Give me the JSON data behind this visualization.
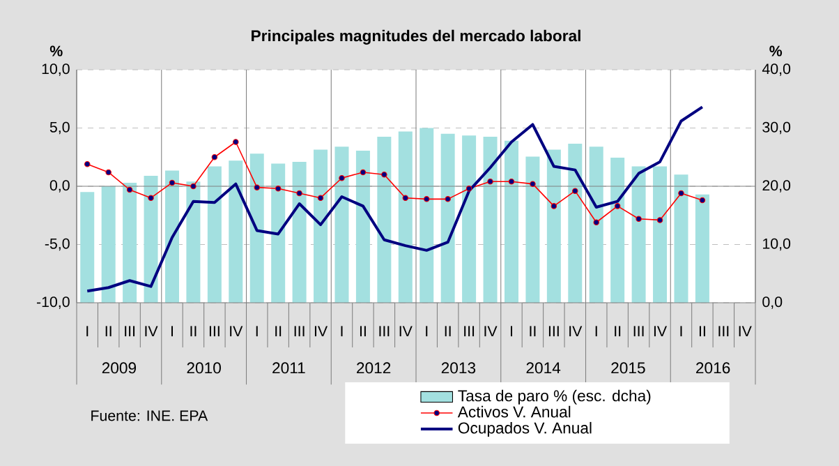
{
  "chart_data": {
    "type": "line",
    "title": "Principales magnitudes del mercado laboral",
    "ylabel": "%",
    "y2label": "%",
    "categories": [
      "I",
      "II",
      "III",
      "IV",
      "I",
      "II",
      "III",
      "IV",
      "I",
      "II",
      "III",
      "IV",
      "I",
      "II",
      "III",
      "IV",
      "I",
      "II",
      "III",
      "IV",
      "I",
      "II",
      "III",
      "IV",
      "I",
      "II",
      "III",
      "IV",
      "I",
      "II",
      "III",
      "IV"
    ],
    "annotations": [
      "Fuente: INE. EPA",
      "2009",
      "2010",
      "2011",
      "2012",
      "2013",
      "2014",
      "2015",
      "2016"
    ],
    "series": [
      {
        "name": "Tasa de paro % (esc. dcha)",
        "type": "bar",
        "axis": "y2",
        "color": "#a3e0e0",
        "values": [
          19.0,
          20.0,
          20.6,
          21.8,
          22.7,
          20.8,
          23.4,
          24.4,
          25.6,
          23.9,
          24.2,
          26.3,
          26.8,
          26.1,
          28.5,
          29.4,
          30.0,
          29.0,
          28.7,
          28.5,
          27.8,
          25.1,
          26.3,
          27.3,
          26.8,
          24.9,
          23.4,
          23.4,
          22.0,
          18.6,
          null,
          null
        ]
      },
      {
        "name": "Activos V. Anual",
        "color": "#ff0000",
        "marker": "circle",
        "values": [
          1.9,
          1.2,
          -0.3,
          -1.0,
          0.3,
          0.0,
          2.5,
          3.8,
          -0.1,
          -0.2,
          -0.6,
          -1.0,
          0.7,
          1.2,
          1.0,
          -1.0,
          -1.1,
          -1.1,
          -0.2,
          0.4,
          0.4,
          0.2,
          -1.7,
          -0.4,
          -3.1,
          -1.7,
          -2.8,
          -2.9,
          -0.6,
          -1.2,
          null,
          null
        ]
      },
      {
        "name": "Ocupados V. Anual",
        "color": "#000080",
        "values": [
          -9.0,
          -8.7,
          -8.1,
          -8.6,
          -4.4,
          -1.3,
          -1.4,
          0.2,
          -3.8,
          -4.1,
          -1.5,
          -3.3,
          -0.9,
          -1.7,
          -4.6,
          -5.1,
          -5.5,
          -4.8,
          -0.4,
          1.6,
          3.8,
          5.3,
          1.7,
          1.4,
          -1.8,
          -1.3,
          1.1,
          2.1,
          5.6,
          6.8,
          null,
          null
        ]
      }
    ],
    "ylim": [
      -10,
      10
    ],
    "yticks": [
      {
        "value": -10,
        "label": "-10,0"
      },
      {
        "value": -5,
        "label": "-5,0"
      },
      {
        "value": 0,
        "label": "0,0"
      },
      {
        "value": 5,
        "label": "5,0"
      },
      {
        "value": 10,
        "label": "10,0"
      }
    ],
    "y2lim": [
      0,
      40
    ],
    "y2ticks": [
      {
        "value": 0,
        "label": "0,0"
      },
      {
        "value": 10,
        "label": "10,0"
      },
      {
        "value": 20,
        "label": "20,0"
      },
      {
        "value": 30,
        "label": "30,0"
      },
      {
        "value": 40,
        "label": "40,0"
      }
    ],
    "grid": "y",
    "legend": "bottom"
  }
}
